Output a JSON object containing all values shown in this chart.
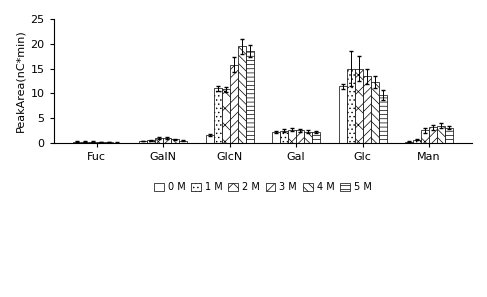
{
  "categories": [
    "Fuc",
    "GalN",
    "GlcN",
    "Gal",
    "Glc",
    "Man"
  ],
  "series_labels": [
    "0 M",
    "1 M",
    "2 M",
    "3 M",
    "4 M",
    "5 M"
  ],
  "values": [
    [
      0.3,
      0.3,
      0.3,
      0.2,
      0.2,
      0.1
    ],
    [
      0.4,
      0.6,
      1.0,
      1.0,
      0.8,
      0.5
    ],
    [
      1.6,
      11.0,
      10.8,
      15.8,
      19.5,
      18.5
    ],
    [
      2.3,
      2.5,
      2.7,
      2.6,
      2.3,
      2.3
    ],
    [
      11.4,
      15.0,
      15.0,
      13.5,
      12.3,
      9.6
    ],
    [
      0.3,
      0.7,
      2.6,
      3.2,
      3.5,
      3.1
    ]
  ],
  "errors": [
    [
      0.05,
      0.05,
      0.05,
      0.05,
      0.05,
      0.05
    ],
    [
      0.05,
      0.1,
      0.15,
      0.15,
      0.1,
      0.1
    ],
    [
      0.2,
      0.5,
      0.5,
      1.5,
      1.5,
      1.2
    ],
    [
      0.2,
      0.35,
      0.35,
      0.3,
      0.3,
      0.2
    ],
    [
      0.5,
      3.5,
      2.5,
      1.5,
      1.2,
      1.0
    ],
    [
      0.05,
      0.1,
      0.5,
      0.5,
      0.5,
      0.3
    ]
  ],
  "ylabel": "PeakArea(nC*min)",
  "ylim": [
    0,
    25
  ],
  "yticks": [
    0,
    5,
    10,
    15,
    20,
    25
  ],
  "bar_width": 0.12,
  "hatch_patterns": [
    "",
    "....",
    "xx",
    "////",
    "\\\\\\\\",
    "----"
  ],
  "face_colors": [
    "white",
    "white",
    "white",
    "white",
    "white",
    "white"
  ],
  "legend_ncol": 6,
  "font_size": 8
}
